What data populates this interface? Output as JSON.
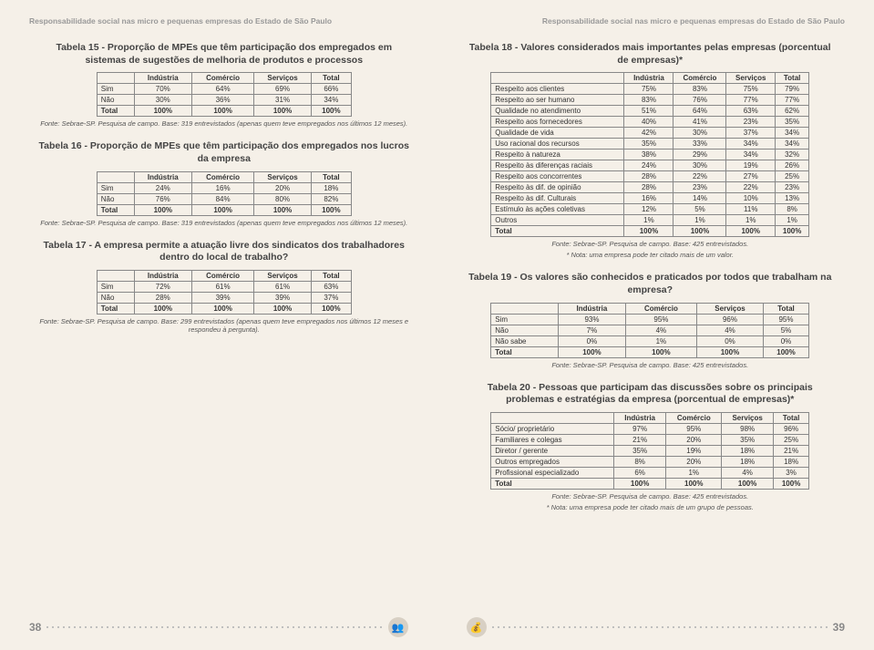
{
  "header": "Responsabilidade social nas micro e pequenas empresas do Estado de São Paulo",
  "pageLeftNum": "38",
  "pageRightNum": "39",
  "tables": {
    "t15": {
      "title": "Tabela 15 - Proporção de MPEs que têm participação dos empregados em sistemas de sugestões de melhoria de produtos e processos",
      "cols": [
        "",
        "Indústria",
        "Comércio",
        "Serviços",
        "Total"
      ],
      "rows": [
        [
          "Sim",
          "70%",
          "64%",
          "69%",
          "66%"
        ],
        [
          "Não",
          "30%",
          "36%",
          "31%",
          "34%"
        ]
      ],
      "total": [
        "Total",
        "100%",
        "100%",
        "100%",
        "100%"
      ],
      "source": "Fonte: Sebrae-SP. Pesquisa de campo. Base: 319 entrevistados (apenas quem teve empregados nos últimos 12 meses)."
    },
    "t16": {
      "title": "Tabela 16 - Proporção de MPEs que têm participação dos empregados nos lucros da empresa",
      "cols": [
        "",
        "Indústria",
        "Comércio",
        "Serviços",
        "Total"
      ],
      "rows": [
        [
          "Sim",
          "24%",
          "16%",
          "20%",
          "18%"
        ],
        [
          "Não",
          "76%",
          "84%",
          "80%",
          "82%"
        ]
      ],
      "total": [
        "Total",
        "100%",
        "100%",
        "100%",
        "100%"
      ],
      "source": "Fonte: Sebrae-SP. Pesquisa de campo. Base: 319 entrevistados (apenas quem teve empregados nos últimos 12 meses)."
    },
    "t17": {
      "title": "Tabela 17 - A empresa permite a atuação livre dos sindicatos dos trabalhadores dentro do local de trabalho?",
      "cols": [
        "",
        "Indústria",
        "Comércio",
        "Serviços",
        "Total"
      ],
      "rows": [
        [
          "Sim",
          "72%",
          "61%",
          "61%",
          "63%"
        ],
        [
          "Não",
          "28%",
          "39%",
          "39%",
          "37%"
        ]
      ],
      "total": [
        "Total",
        "100%",
        "100%",
        "100%",
        "100%"
      ],
      "source": "Fonte: Sebrae-SP. Pesquisa de campo. Base: 299 entrevistados (apenas quem teve empregados nos últimos 12 meses e respondeu à pergunta)."
    },
    "t18": {
      "title": "Tabela 18 - Valores considerados mais importantes pelas empresas (porcentual de empresas)*",
      "cols": [
        "",
        "Indústria",
        "Comércio",
        "Serviços",
        "Total"
      ],
      "rows": [
        [
          "Respeito aos clientes",
          "75%",
          "83%",
          "75%",
          "79%"
        ],
        [
          "Respeito ao ser humano",
          "83%",
          "76%",
          "77%",
          "77%"
        ],
        [
          "Qualidade no atendimento",
          "51%",
          "64%",
          "63%",
          "62%"
        ],
        [
          "Respeito aos fornecedores",
          "40%",
          "41%",
          "23%",
          "35%"
        ],
        [
          "Qualidade de vida",
          "42%",
          "30%",
          "37%",
          "34%"
        ],
        [
          "Uso racional dos recursos",
          "35%",
          "33%",
          "34%",
          "34%"
        ],
        [
          "Respeito à natureza",
          "38%",
          "29%",
          "34%",
          "32%"
        ],
        [
          "Respeito às diferenças raciais",
          "24%",
          "30%",
          "19%",
          "26%"
        ],
        [
          "Respeito aos concorrentes",
          "28%",
          "22%",
          "27%",
          "25%"
        ],
        [
          "Respeito às dif. de opinião",
          "28%",
          "23%",
          "22%",
          "23%"
        ],
        [
          "Respeito às dif. Culturais",
          "16%",
          "14%",
          "10%",
          "13%"
        ],
        [
          "Estímulo às ações coletivas",
          "12%",
          "5%",
          "11%",
          "8%"
        ],
        [
          "Outros",
          "1%",
          "1%",
          "1%",
          "1%"
        ]
      ],
      "total": [
        "Total",
        "100%",
        "100%",
        "100%",
        "100%"
      ],
      "source": "Fonte: Sebrae-SP. Pesquisa de campo. Base: 425 entrevistados.",
      "note": "* Nota: uma empresa pode ter citado mais de um valor."
    },
    "t19": {
      "title": "Tabela 19 - Os valores são conhecidos e praticados por todos que trabalham na empresa?",
      "cols": [
        "",
        "Indústria",
        "Comércio",
        "Serviços",
        "Total"
      ],
      "rows": [
        [
          "Sim",
          "93%",
          "95%",
          "96%",
          "95%"
        ],
        [
          "Não",
          "7%",
          "4%",
          "4%",
          "5%"
        ],
        [
          "Não sabe",
          "0%",
          "1%",
          "0%",
          "0%"
        ]
      ],
      "total": [
        "Total",
        "100%",
        "100%",
        "100%",
        "100%"
      ],
      "source": "Fonte: Sebrae-SP. Pesquisa de campo. Base: 425 entrevistados."
    },
    "t20": {
      "title": "Tabela 20 - Pessoas que participam das discussões sobre os principais problemas e estratégias da empresa (porcentual de empresas)*",
      "cols": [
        "",
        "Indústria",
        "Comércio",
        "Serviços",
        "Total"
      ],
      "rows": [
        [
          "Sócio/ proprietário",
          "97%",
          "95%",
          "98%",
          "96%"
        ],
        [
          "Familiares e colegas",
          "21%",
          "20%",
          "35%",
          "25%"
        ],
        [
          "Diretor / gerente",
          "35%",
          "19%",
          "18%",
          "21%"
        ],
        [
          "Outros empregados",
          "8%",
          "20%",
          "18%",
          "18%"
        ],
        [
          "Profissional especializado",
          "6%",
          "1%",
          "4%",
          "3%"
        ]
      ],
      "total": [
        "Total",
        "100%",
        "100%",
        "100%",
        "100%"
      ],
      "source": "Fonte: Sebrae-SP. Pesquisa de campo. Base: 425 entrevistados.",
      "note": "* Nota: uma empresa pode ter citado mais de um grupo de pessoas."
    }
  }
}
